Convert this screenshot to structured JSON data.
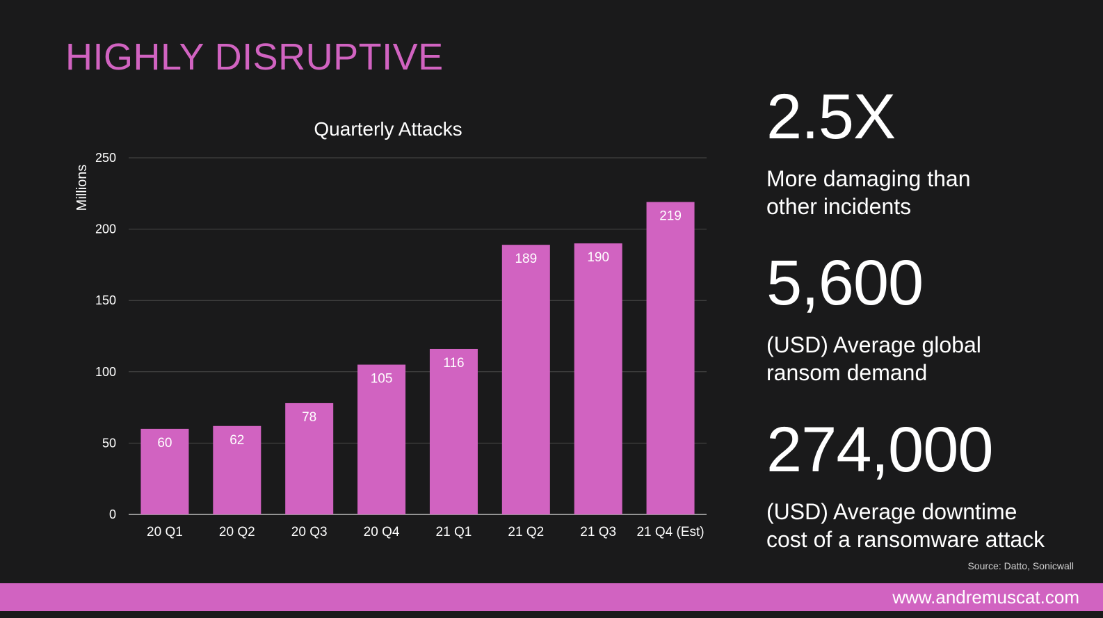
{
  "slide": {
    "title": "HIGHLY DISRUPTIVE",
    "source": "Source: Datto, Sonicwall",
    "footer_url": "www.andremuscat.com"
  },
  "colors": {
    "background": "#1a1a1b",
    "accent": "#d163c1",
    "text": "#ffffff",
    "gridline": "#4a4a4a"
  },
  "stats": [
    {
      "value": "2.5X",
      "desc_line1": "More damaging than",
      "desc_line2": "other incidents"
    },
    {
      "value": "5,600",
      "desc_line1": "(USD) Average global",
      "desc_line2": "ransom demand"
    },
    {
      "value": "274,000",
      "desc_line1": "(USD) Average downtime",
      "desc_line2": "cost of a ransomware attack"
    }
  ],
  "chart_data": {
    "type": "bar",
    "title": "Quarterly Attacks",
    "xlabel": "",
    "ylabel": "Millions",
    "categories": [
      "20 Q1",
      "20 Q2",
      "20 Q3",
      "20 Q4",
      "21 Q1",
      "21 Q2",
      "21 Q3",
      "21 Q4 (Est)"
    ],
    "values": [
      60,
      62,
      78,
      105,
      116,
      189,
      190,
      219
    ],
    "ylim": [
      0,
      250
    ],
    "yticks": [
      0,
      50,
      100,
      150,
      200,
      250
    ],
    "grid": true,
    "legend": "none",
    "data_labels": true
  }
}
